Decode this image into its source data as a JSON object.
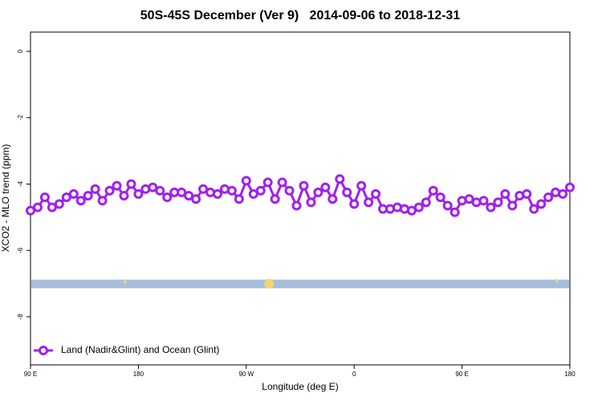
{
  "chart_data": {
    "type": "line",
    "title": "50S-45S December (Ver 9)   2014-09-06 to 2018-12-31",
    "xlabel": "Longitude (deg E)",
    "ylabel": "XCO2 - MLO trend (ppm)",
    "xlim": [
      90,
      540
    ],
    "xticks": [
      {
        "value": 90,
        "label": "90 E"
      },
      {
        "value": 180,
        "label": "180"
      },
      {
        "value": 270,
        "label": "90 W"
      },
      {
        "value": 360,
        "label": "0"
      },
      {
        "value": 450,
        "label": "90 E"
      },
      {
        "value": 540,
        "label": "180"
      }
    ],
    "ylim": [
      -9.45,
      0.58
    ],
    "yticks": [
      0,
      -2,
      -4,
      -6,
      -8
    ],
    "legend": "lower left",
    "series": [
      {
        "name": "Land (Nadir&Glint) and Ocean (Glint)",
        "color": "#a020f0",
        "x": [
          90,
          96,
          102,
          108,
          114,
          120,
          126,
          132,
          138,
          144,
          150,
          156,
          162,
          168,
          174,
          180,
          186,
          192,
          198,
          204,
          210,
          216,
          222,
          228,
          234,
          240,
          246,
          252,
          258,
          264,
          270,
          276,
          282,
          288,
          294,
          300,
          306,
          312,
          318,
          324,
          330,
          336,
          342,
          348,
          354,
          360,
          366,
          372,
          378,
          384,
          390,
          396,
          402,
          408,
          414,
          420,
          426,
          432,
          438,
          444,
          450,
          456,
          462,
          468,
          474,
          480,
          486,
          492,
          498,
          504,
          510,
          516,
          522,
          528,
          534,
          540
        ],
        "values": [
          -4.8,
          -4.7,
          -4.4,
          -4.7,
          -4.6,
          -4.4,
          -4.3,
          -4.5,
          -4.35,
          -4.15,
          -4.5,
          -4.2,
          -4.05,
          -4.35,
          -4.0,
          -4.3,
          -4.15,
          -4.1,
          -4.2,
          -4.4,
          -4.25,
          -4.25,
          -4.35,
          -4.45,
          -4.15,
          -4.25,
          -4.3,
          -4.15,
          -4.2,
          -4.45,
          -3.9,
          -4.3,
          -4.2,
          -3.95,
          -4.45,
          -3.95,
          -4.2,
          -4.65,
          -4.05,
          -4.55,
          -4.25,
          -4.1,
          -4.45,
          -3.85,
          -4.25,
          -4.6,
          -4.05,
          -4.55,
          -4.3,
          -4.75,
          -4.75,
          -4.7,
          -4.75,
          -4.8,
          -4.7,
          -4.55,
          -4.2,
          -4.4,
          -4.65,
          -4.85,
          -4.5,
          -4.45,
          -4.55,
          -4.5,
          -4.7,
          -4.55,
          -4.3,
          -4.65,
          -4.35,
          -4.3,
          -4.75,
          -4.6,
          -4.4,
          -4.25,
          -4.3,
          -4.1
        ]
      }
    ],
    "band": {
      "color": "#a7bfdc",
      "range": [
        -6.88,
        -7.14
      ]
    },
    "markers": {
      "color": "#f5d76e",
      "x": [
        169,
        289,
        529
      ],
      "values": [
        -6.95,
        -7.0,
        -6.9
      ],
      "sizes": [
        2,
        6,
        2
      ]
    }
  }
}
